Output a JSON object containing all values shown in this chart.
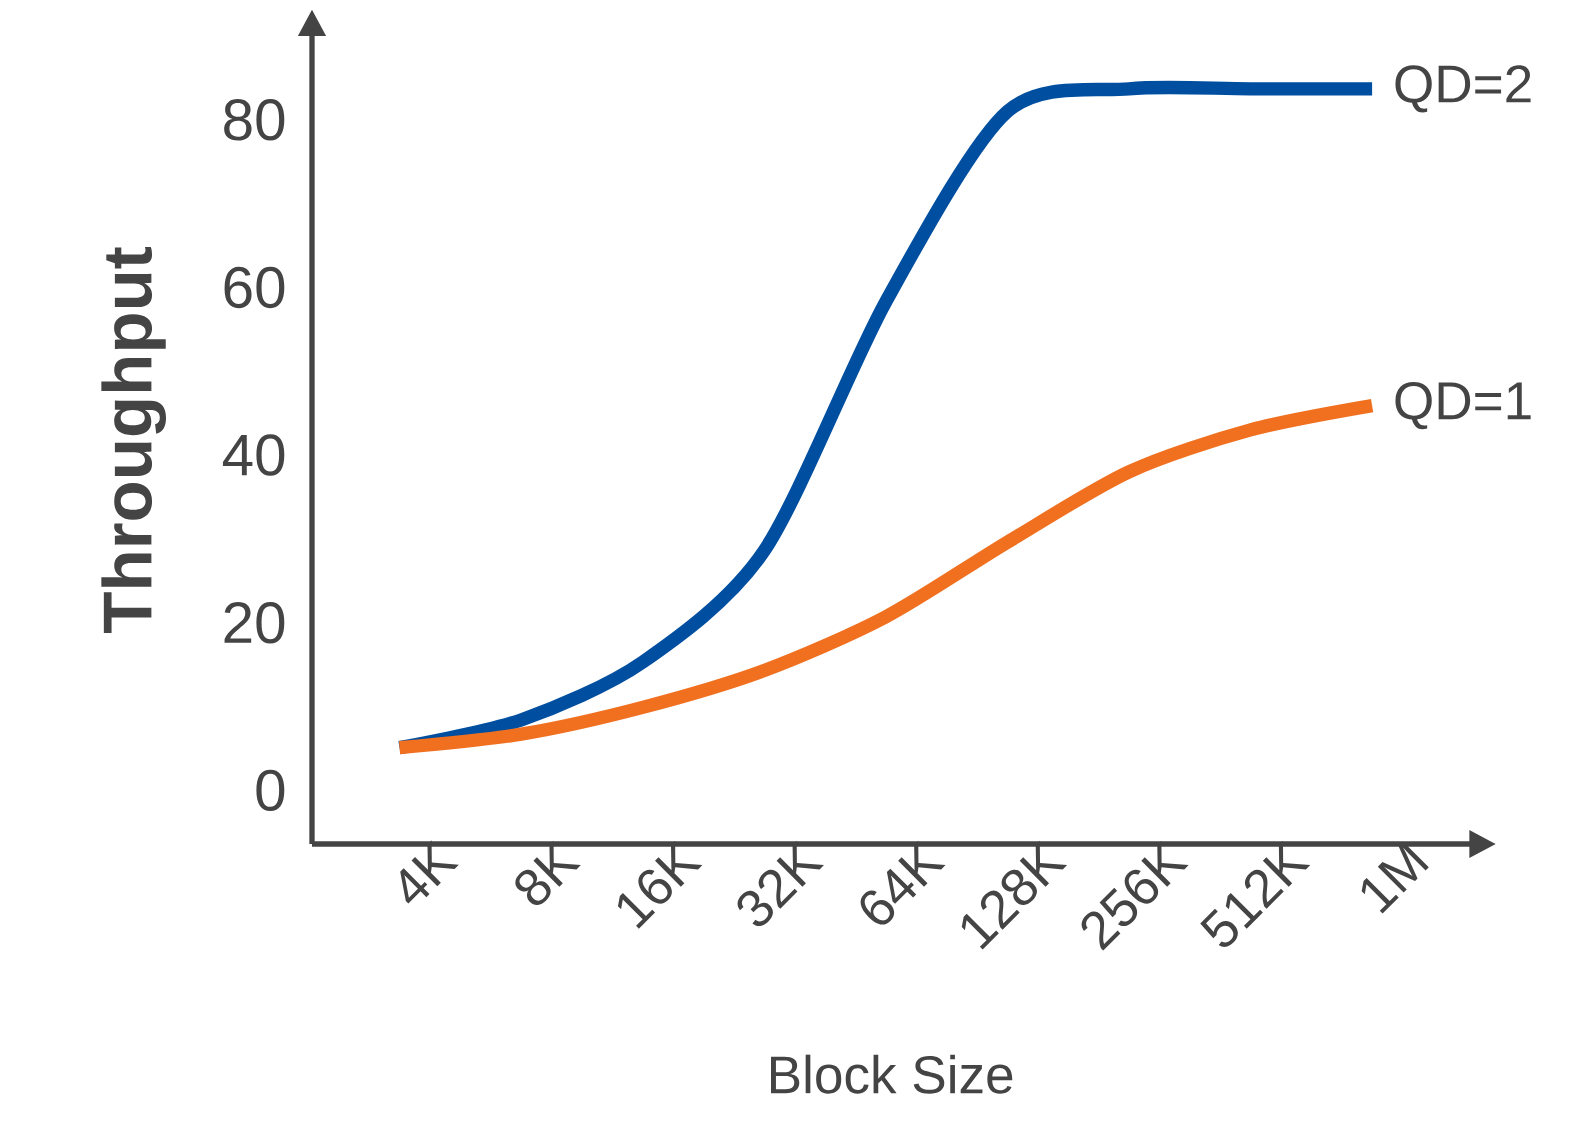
{
  "chart_data": {
    "type": "line",
    "xlabel": "Block Size",
    "ylabel": "Throughput",
    "categories": [
      "4K",
      "8K",
      "16K",
      "32K",
      "64K",
      "128K",
      "256K",
      "512K",
      "1M"
    ],
    "ylim": [
      -6.4,
      90
    ],
    "yticks": [
      0,
      20,
      40,
      60,
      80
    ],
    "grid": false,
    "marker": "none",
    "line_style": "solid",
    "series": [
      {
        "name": "QD=2",
        "color": "#004ea0",
        "values": [
          5.1,
          8.4,
          15.3,
          28.6,
          58.3,
          81,
          83.7,
          83.7,
          83.7
        ]
      },
      {
        "name": "QD=1",
        "color": "#f07020",
        "values": [
          5.1,
          6.7,
          9.9,
          14.3,
          20.7,
          29.6,
          38,
          43,
          45.9
        ]
      }
    ]
  }
}
